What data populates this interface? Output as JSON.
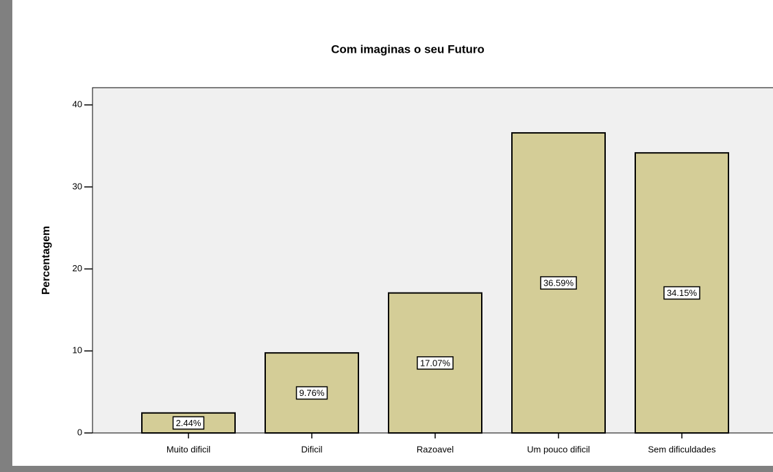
{
  "chart_data": {
    "type": "bar",
    "title": "Com imaginas o seu Futuro",
    "y_label": "Percentagem",
    "categories": [
      "Muito dificil",
      "Dificil",
      "Razoavel",
      "Um pouco dificil",
      "Sem dificuldades"
    ],
    "values": [
      2.44,
      9.76,
      17.07,
      36.59,
      34.15
    ],
    "value_labels": [
      "2.44%",
      "9.76%",
      "17.07%",
      "36.59%",
      "34.15%"
    ],
    "color": "#d4cd97",
    "ylim": [
      0,
      42.1
    ],
    "yticks": [
      0,
      10,
      20,
      30,
      40
    ],
    "grid": false
  }
}
